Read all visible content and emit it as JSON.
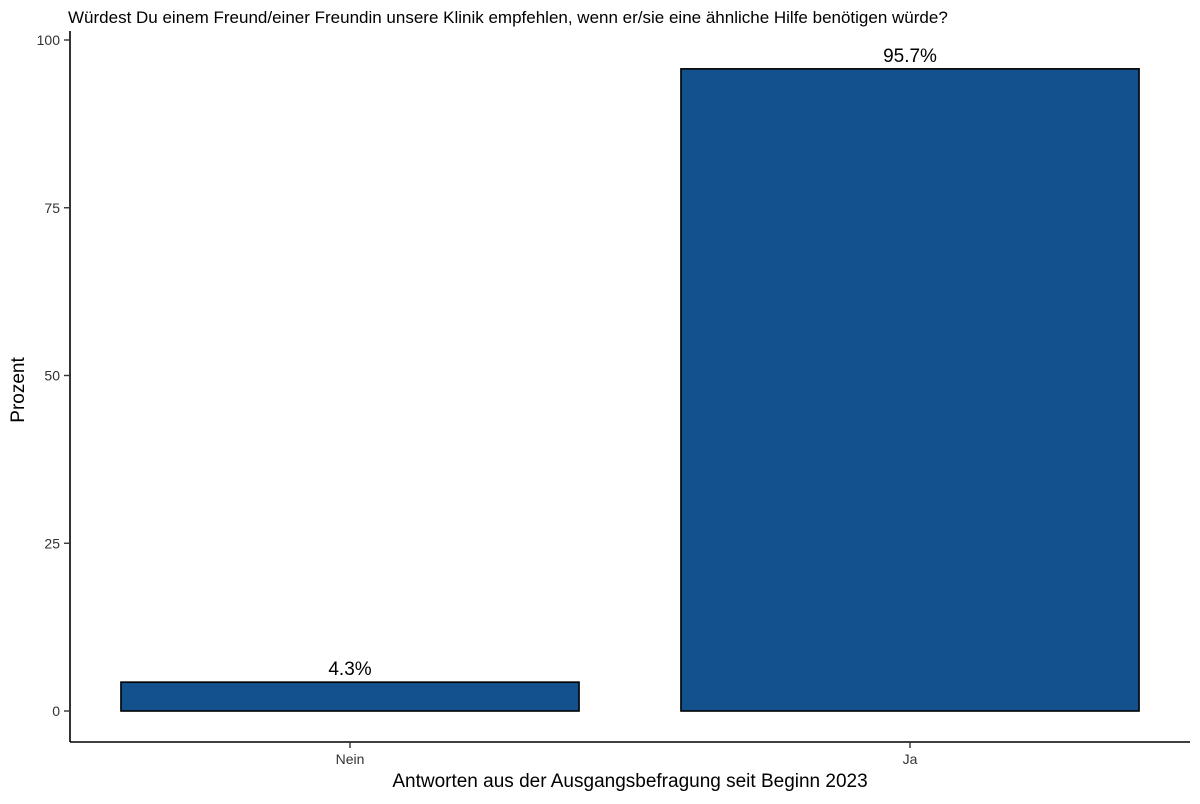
{
  "chart_data": {
    "type": "bar",
    "title": "Würdest Du einem Freund/einer Freundin unsere Klinik empfehlen, wenn er/sie eine ähnliche Hilfe benötigen würde?",
    "xlabel": "Antworten aus der Ausgangsbefragung seit Beginn 2023",
    "ylabel": "Prozent",
    "categories": [
      "Nein",
      "Ja"
    ],
    "values": [
      4.3,
      95.7
    ],
    "data_labels": [
      "4.3%",
      "95.7%"
    ],
    "ylim": [
      0,
      100
    ],
    "yticks": [
      0,
      25,
      50,
      75,
      100
    ],
    "ytick_labels": [
      "0",
      "25",
      "50",
      "75",
      "100"
    ],
    "bar_color": "#12518c",
    "bar_outline": "#000000",
    "grid": false,
    "legend": "none"
  }
}
